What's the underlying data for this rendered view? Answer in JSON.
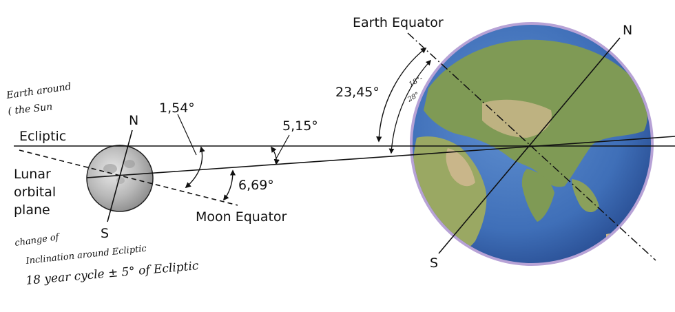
{
  "labels": {
    "earth_equator": "Earth Equator",
    "earth_north": "N",
    "earth_south": "S",
    "moon_north": "N",
    "moon_south": "S",
    "ecliptic": "Ecliptic",
    "lunar_orbital_plane_line1": "Lunar",
    "lunar_orbital_plane_line2": "orbital",
    "lunar_orbital_plane_line3": "plane",
    "moon_equator": "Moon Equator",
    "angle_moon_axis": "1,54°",
    "angle_orbit": "5,15°",
    "angle_moon_equator_orbit": "6,69°",
    "angle_earth_tilt": "23,45°"
  },
  "handwritten": {
    "earth_around_line1": "Earth around",
    "earth_around_line2": "( the Sun",
    "note_line1": "change of",
    "note_line2": "Inclination around Ecliptic",
    "note_line3": "18 year cycle  ±  5° of Ecliptic",
    "angle_range_top": "18°-",
    "angle_range_bottom": "28°"
  },
  "colors": {
    "ocean": "#3f6fb8",
    "land": "#7f9a55",
    "desert": "#c9b68a",
    "atmosphere": "#b7a2d6",
    "moon": "#b8b8b8",
    "line": "#111111"
  }
}
